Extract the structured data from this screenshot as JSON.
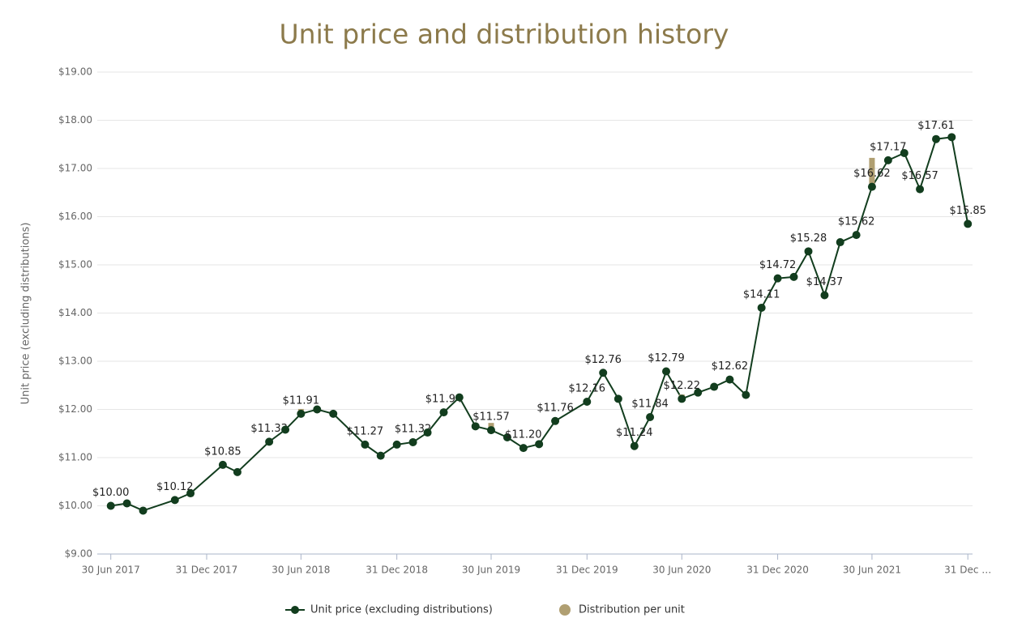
{
  "chart_data": {
    "type": "line",
    "title": "Unit price and distribution history",
    "y_label": "Unit price (excluding distributions)",
    "x": [
      "2017-06-30",
      "2017-07-31",
      "2017-08-31",
      "2017-10-31",
      "2017-11-30",
      "2018-01-31",
      "2018-02-28",
      "2018-04-30",
      "2018-05-31",
      "2018-06-30",
      "2018-07-31",
      "2018-08-31",
      "2018-10-31",
      "2018-11-30",
      "2018-12-31",
      "2019-01-31",
      "2019-02-28",
      "2019-03-31",
      "2019-04-30",
      "2019-05-31",
      "2019-06-30",
      "2019-07-31",
      "2019-08-31",
      "2019-09-30",
      "2019-10-31",
      "2019-12-31",
      "2020-01-31",
      "2020-02-29",
      "2020-03-31",
      "2020-04-30",
      "2020-05-31",
      "2020-06-30",
      "2020-07-31",
      "2020-08-31",
      "2020-09-30",
      "2020-10-31",
      "2020-11-30",
      "2020-12-31",
      "2021-01-31",
      "2021-02-28",
      "2021-03-31",
      "2021-04-30",
      "2021-05-31",
      "2021-06-30",
      "2021-07-31",
      "2021-08-31",
      "2021-09-30",
      "2021-10-31",
      "2021-11-30",
      "2021-12-31"
    ],
    "series": [
      {
        "name": "Unit price (excluding distributions)",
        "color": "#123d1e",
        "values": [
          10.0,
          10.05,
          9.9,
          10.12,
          10.26,
          10.85,
          10.7,
          11.33,
          11.58,
          11.91,
          12.0,
          11.91,
          11.27,
          11.04,
          11.27,
          11.32,
          11.52,
          11.94,
          12.25,
          11.65,
          11.57,
          11.42,
          11.2,
          11.28,
          11.76,
          12.16,
          12.76,
          12.22,
          11.24,
          11.84,
          12.79,
          12.22,
          12.35,
          12.47,
          12.62,
          12.3,
          14.11,
          14.72,
          14.75,
          15.28,
          14.37,
          15.47,
          15.62,
          16.62,
          17.17,
          17.32,
          16.57,
          17.61,
          17.65,
          15.85
        ],
        "value_labels": [
          "$10.00",
          null,
          null,
          "$10.12",
          null,
          "$10.85",
          null,
          "$11.33",
          null,
          "$11.91",
          null,
          null,
          "$11.27",
          null,
          null,
          "$11.32",
          null,
          "$11.94",
          null,
          null,
          "$11.57",
          null,
          "$11.20",
          null,
          "$11.76",
          "$12.16",
          "$12.76",
          null,
          "$11.24",
          "$11.84",
          "$12.79",
          "$12.22",
          null,
          null,
          "$12.62",
          null,
          "$14.11",
          "$14.72",
          null,
          "$15.28",
          "$14.37",
          null,
          "$15.62",
          "$16.62",
          "$17.17",
          null,
          "$16.57",
          "$17.61",
          null,
          "$15.85"
        ]
      },
      {
        "name": "Distribution per unit",
        "color": "#b09f72",
        "stacked": true,
        "values": [
          null,
          null,
          null,
          null,
          null,
          null,
          null,
          null,
          null,
          0.1,
          null,
          null,
          null,
          null,
          null,
          null,
          null,
          null,
          null,
          null,
          0.15,
          null,
          null,
          null,
          null,
          null,
          null,
          null,
          null,
          null,
          null,
          0.09,
          null,
          null,
          null,
          null,
          null,
          null,
          null,
          null,
          null,
          null,
          null,
          0.6,
          null,
          null,
          null,
          null,
          null,
          null
        ]
      }
    ],
    "xlim": [
      "2017-06-04",
      "2022-01-09"
    ],
    "xticks": [
      {
        "value": "2017-06-30",
        "label": "30 Jun 2017"
      },
      {
        "value": "2017-12-31",
        "label": "31 Dec 2017"
      },
      {
        "value": "2018-06-30",
        "label": "30 Jun 2018"
      },
      {
        "value": "2018-12-31",
        "label": "31 Dec 2018"
      },
      {
        "value": "2019-06-30",
        "label": "30 Jun 2019"
      },
      {
        "value": "2019-12-31",
        "label": "31 Dec 2019"
      },
      {
        "value": "2020-06-30",
        "label": "30 Jun 2020"
      },
      {
        "value": "2020-12-31",
        "label": "31 Dec 2020"
      },
      {
        "value": "2021-06-30",
        "label": "30 Jun 2021"
      },
      {
        "value": "2021-12-31",
        "label": "31 Dec …"
      }
    ],
    "ylim": [
      9,
      19
    ],
    "yticks": [
      {
        "value": 9,
        "label": "$9.00"
      },
      {
        "value": 10,
        "label": "$10.00"
      },
      {
        "value": 11,
        "label": "$11.00"
      },
      {
        "value": 12,
        "label": "$12.00"
      },
      {
        "value": 13,
        "label": "$13.00"
      },
      {
        "value": 14,
        "label": "$14.00"
      },
      {
        "value": 15,
        "label": "$15.00"
      },
      {
        "value": 16,
        "label": "$16.00"
      },
      {
        "value": 17,
        "label": "$17.00"
      },
      {
        "value": 18,
        "label": "$18.00"
      },
      {
        "value": 19,
        "label": "$19.00"
      }
    ],
    "grid": true,
    "legend": "bottom"
  }
}
